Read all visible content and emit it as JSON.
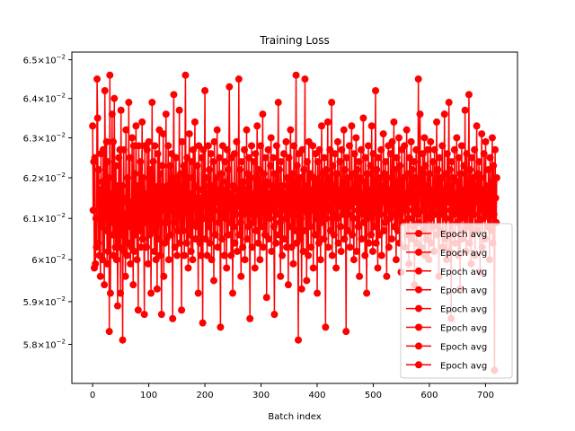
{
  "chart_data": {
    "type": "line",
    "title": "Training Loss",
    "xlabel": "Batch index",
    "ylabel": "",
    "xlim": [
      -37,
      757
    ],
    "ylim": [
      0.0571,
      0.0652
    ],
    "y_scale": "log",
    "x_ticks": [
      0,
      100,
      200,
      300,
      400,
      500,
      600,
      700
    ],
    "x_tick_labels": [
      "0",
      "100",
      "200",
      "300",
      "400",
      "500",
      "600",
      "700"
    ],
    "y_ticks": [
      0.058,
      0.059,
      0.06,
      0.061,
      0.062,
      0.063,
      0.064,
      0.065
    ],
    "y_tick_mantissas": [
      "5.8",
      "5.9",
      "6",
      "6.1",
      "6.2",
      "6.3",
      "6.4",
      "6.5"
    ],
    "y_tick_base": "10",
    "y_tick_exponent": "−2",
    "series_color": "#ff0000",
    "grid": false,
    "legend_position": "lower-right",
    "legend_entries": [
      "Epoch avg",
      "Epoch avg",
      "Epoch avg",
      "Epoch avg",
      "Epoch avg",
      "Epoch avg",
      "Epoch avg",
      "Epoch avg"
    ],
    "x_range": [
      0,
      720
    ],
    "values_y": [
      0.0633,
      0.0612,
      0.0624,
      0.0598,
      0.0625,
      0.0599,
      0.061,
      0.0603,
      0.0645,
      0.0635,
      0.0604,
      0.0622,
      0.0601,
      0.0617,
      0.0596,
      0.0626,
      0.0608,
      0.0619,
      0.06,
      0.0627,
      0.0612,
      0.0594,
      0.0642,
      0.0618,
      0.0607,
      0.0629,
      0.0599,
      0.0624,
      0.0602,
      0.062,
      0.0583,
      0.0646,
      0.0592,
      0.0616,
      0.0609,
      0.0636,
      0.0606,
      0.0629,
      0.0601,
      0.064,
      0.0611,
      0.0603,
      0.0623,
      0.06,
      0.0618,
      0.0589,
      0.0609,
      0.0625,
      0.0603,
      0.0627,
      0.0592,
      0.0637,
      0.0606,
      0.0618,
      0.0581,
      0.0614,
      0.0627,
      0.0602,
      0.0611,
      0.0596,
      0.0632,
      0.0615,
      0.0601,
      0.062,
      0.0604,
      0.0639,
      0.0608,
      0.0625,
      0.0599,
      0.0614,
      0.0603,
      0.063,
      0.0611,
      0.0594,
      0.0628,
      0.0602,
      0.0621,
      0.0606,
      0.0633,
      0.0612,
      0.06,
      0.0618,
      0.0588,
      0.0628,
      0.0615,
      0.0607,
      0.0624,
      0.0603,
      0.0613,
      0.0634,
      0.0605,
      0.062,
      0.0611,
      0.0587,
      0.0628,
      0.0609,
      0.0616,
      0.0603,
      0.0627,
      0.0611,
      0.0599,
      0.0629,
      0.0615,
      0.0606,
      0.0622,
      0.0592,
      0.0612,
      0.0639,
      0.0607,
      0.0624,
      0.0615,
      0.0602,
      0.0628,
      0.0611,
      0.06,
      0.0617,
      0.0593,
      0.0626,
      0.0605,
      0.0618,
      0.0632,
      0.0601,
      0.0621,
      0.0609,
      0.0587,
      0.0623,
      0.0612,
      0.0631,
      0.0596,
      0.0617,
      0.0604,
      0.0613,
      0.0636,
      0.0605,
      0.0618,
      0.0609,
      0.0628,
      0.06,
      0.0614,
      0.0623,
      0.0606,
      0.0619,
      0.0626,
      0.0612,
      0.0586,
      0.062,
      0.0641,
      0.0609,
      0.0603,
      0.0618,
      0.0625,
      0.0611,
      0.0601,
      0.062,
      0.0607,
      0.0616,
      0.0637,
      0.0604,
      0.0621,
      0.0612,
      0.0588,
      0.0629,
      0.0615,
      0.0607,
      0.0623,
      0.0601,
      0.0618,
      0.0646,
      0.0612,
      0.0604,
      0.0625,
      0.0611,
      0.0598,
      0.062,
      0.0631,
      0.0606,
      0.0616,
      0.0602,
      0.0624,
      0.0613,
      0.06,
      0.0627,
      0.0609,
      0.0618,
      0.0634,
      0.0605,
      0.0615,
      0.0608,
      0.0623,
      0.0612,
      0.0592,
      0.0628,
      0.0617,
      0.0604,
      0.0615,
      0.0601,
      0.0625,
      0.0613,
      0.0585,
      0.0627,
      0.061,
      0.0618,
      0.0642,
      0.0605,
      0.062,
      0.0614,
      0.0601,
      0.0616,
      0.0628,
      0.0608,
      0.0622,
      0.0604,
      0.0613,
      0.0626,
      0.06,
      0.0618,
      0.061,
      0.0624,
      0.0595,
      0.0629,
      0.0612,
      0.0606,
      0.062,
      0.0614,
      0.0632,
      0.0603,
      0.0617,
      0.0609,
      0.0625,
      0.0612,
      0.0584,
      0.0621,
      0.0615,
      0.0605,
      0.0628,
      0.0611,
      0.0617,
      0.0601,
      0.0624,
      0.061,
      0.0619,
      0.0598,
      0.0627,
      0.0613,
      0.0606,
      0.0622,
      0.0643,
      0.0609,
      0.0616,
      0.0601,
      0.0625,
      0.0612,
      0.0592,
      0.0618,
      0.0608,
      0.0626,
      0.0604,
      0.0615,
      0.0611,
      0.0629,
      0.0602,
      0.0617,
      0.0613,
      0.0645,
      0.0606,
      0.0622,
      0.0609,
      0.0596,
      0.0624,
      0.0614,
      0.0603,
      0.0619,
      0.0611,
      0.0627,
      0.06,
      0.0617,
      0.0612,
      0.0632,
      0.0605,
      0.0621,
      0.0608,
      0.0625,
      0.0614,
      0.0586,
      0.062,
      0.0611,
      0.0628,
      0.0603,
      0.0616,
      0.0609,
      0.0624,
      0.0612,
      0.0598,
      0.0626,
      0.0607,
      0.0619,
      0.0633,
      0.0611,
      0.0604,
      0.0622,
      0.0615,
      0.06,
      0.0628,
      0.0613,
      0.0608,
      0.0617,
      0.0636,
      0.0603,
      0.0621,
      0.0612,
      0.0606,
      0.0625,
      0.0614,
      0.0591,
      0.0619,
      0.0611,
      0.0627,
      0.0605,
      0.0616,
      0.061,
      0.0623,
      0.063,
      0.0602,
      0.0618,
      0.0612,
      0.0625,
      0.0608,
      0.0587,
      0.0621,
      0.0614,
      0.0604,
      0.0628,
      0.0611,
      0.0617,
      0.0639,
      0.0606,
      0.0622,
      0.0609,
      0.0596,
      0.0624,
      0.0613,
      0.0601,
      0.0618,
      0.0612,
      0.0626,
      0.0605,
      0.0616,
      0.061,
      0.0629,
      0.0603,
      0.062,
      0.0614,
      0.0594,
      0.0625,
      0.0608,
      0.0617,
      0.0632,
      0.0611,
      0.0603,
      0.0621,
      0.0615,
      0.0599,
      0.0628,
      0.0612,
      0.0607,
      0.0619,
      0.0646,
      0.0604,
      0.0623,
      0.0611,
      0.0581,
      0.0626,
      0.0614,
      0.0605,
      0.062,
      0.061,
      0.0593,
      0.0627,
      0.0616,
      0.0602,
      0.0622,
      0.0612,
      0.0645,
      0.0607,
      0.0618,
      0.0595,
      0.0624,
      0.0611,
      0.0601,
      0.0629,
      0.0614,
      0.0608,
      0.0621,
      0.0603,
      0.0617,
      0.0612,
      0.0628,
      0.0598,
      0.062,
      0.0613,
      0.0606,
      0.0626,
      0.061,
      0.0619,
      0.0592,
      0.0624,
      0.0611,
      0.0604,
      0.0627,
      0.0615,
      0.06,
      0.0618,
      0.0633,
      0.0609,
      0.0621,
      0.0612,
      0.0605,
      0.0625,
      0.0614,
      0.0584,
      0.0622,
      0.061,
      0.0617,
      0.0634,
      0.0603,
      0.062,
      0.0612,
      0.0627,
      0.0607,
      0.0615,
      0.0639,
      0.0601,
      0.0623,
      0.0611,
      0.0606,
      0.0618,
      0.0626,
      0.0614,
      0.0598,
      0.0621,
      0.061,
      0.0629,
      0.0604,
      0.0617,
      0.0613,
      0.0624,
      0.0608,
      0.0602,
      0.0627,
      0.0615,
      0.0611,
      0.0619,
      0.0632,
      0.0605,
      0.0622,
      0.0612,
      0.0583,
      0.0625,
      0.0614,
      0.0607,
      0.062,
      0.0611,
      0.0628,
      0.0603,
      0.0617,
      0.0613,
      0.0633,
      0.0606,
      0.0621,
      0.061,
      0.06,
      0.0626,
      0.0614,
      0.0618,
      0.063,
      0.0602,
      0.0622,
      0.0612,
      0.0608,
      0.0624,
      0.0596,
      0.062,
      0.0613,
      0.0627,
      0.0605,
      0.0616,
      0.0611,
      0.0635,
      0.0609,
      0.0619,
      0.0601,
      0.0625,
      0.0614,
      0.0592,
      0.0621,
      0.061,
      0.0628,
      0.0604,
      0.0617,
      0.0612,
      0.0623,
      0.0606,
      0.0633,
      0.0611,
      0.0602,
      0.0626,
      0.0615,
      0.0608,
      0.0619,
      0.0642,
      0.0604,
      0.0622,
      0.0612,
      0.0598,
      0.0625,
      0.0613,
      0.0606,
      0.062,
      0.0611,
      0.0627,
      0.0601,
      0.0618,
      0.0614,
      0.0631,
      0.0607,
      0.0621,
      0.0609,
      0.0624,
      0.0615,
      0.0596,
      0.062,
      0.0612,
      0.0628,
      0.0603,
      0.0617,
      0.061,
      0.0626,
      0.0613,
      0.0605,
      0.0629,
      0.0611,
      0.0618,
      0.0634,
      0.0608,
      0.0622,
      0.0614,
      0.06,
      0.0625,
      0.0612,
      0.0607,
      0.0619,
      0.063,
      0.0604,
      0.0623,
      0.0611,
      0.0597,
      0.0627,
      0.0615,
      0.0609,
      0.062,
      0.0613,
      0.0628,
      0.0603,
      0.0616,
      0.0612,
      0.0632,
      0.0606,
      0.0621,
      0.061,
      0.0599,
      0.0625,
      0.0614,
      0.0617,
      0.0629,
      0.0605,
      0.0622,
      0.0612,
      0.0608,
      0.0624,
      0.0594,
      0.062,
      0.0613,
      0.0627,
      0.0604,
      0.0618,
      0.0611,
      0.0645,
      0.0609,
      0.0619,
      0.0636,
      0.0616,
      0.0603,
      0.0622,
      0.0612,
      0.0626,
      0.0607,
      0.0615,
      0.063,
      0.0601,
      0.0623,
      0.0611,
      0.0605,
      0.0618,
      0.0627,
      0.0614,
      0.06,
      0.0621,
      0.061,
      0.0629,
      0.0604,
      0.0617,
      0.0612,
      0.0624,
      0.0608,
      0.0602,
      0.0627,
      0.0615,
      0.0611,
      0.0619,
      0.0634,
      0.0606,
      0.0622,
      0.0613,
      0.0596,
      0.0625,
      0.0614,
      0.0607,
      0.062,
      0.0611,
      0.0628,
      0.0603,
      0.0617,
      0.0612,
      0.0636,
      0.0605,
      0.0621,
      0.061,
      0.06,
      0.0626,
      0.0614,
      0.0618,
      0.0639,
      0.0602,
      0.0622,
      0.0612,
      0.0586,
      0.0624,
      0.0613,
      0.0606,
      0.062,
      0.0611,
      0.0627,
      0.0604,
      0.0616,
      0.0612,
      0.063,
      0.0609,
      0.0619,
      0.0601,
      0.0625,
      0.0614,
      0.0593,
      0.0621,
      0.061,
      0.0628,
      0.0605,
      0.0617,
      0.0612,
      0.0623,
      0.0607,
      0.0637,
      0.0611,
      0.0602,
      0.0626,
      0.0615,
      0.0608,
      0.0619,
      0.0641,
      0.0604,
      0.0622,
      0.0612,
      0.0599,
      0.0625,
      0.0613,
      0.0606,
      0.062,
      0.0611,
      0.0627,
      0.0601,
      0.0618,
      0.0614,
      0.0633,
      0.0607,
      0.0621,
      0.0609,
      0.0624,
      0.0615,
      0.0597,
      0.062,
      0.0612,
      0.0631,
      0.0603,
      0.0617,
      0.061,
      0.0626,
      0.0613,
      0.0605,
      0.0629,
      0.0611,
      0.0618,
      0.0612,
      0.0608,
      0.0622,
      0.0614,
      0.06,
      0.0625,
      0.0612,
      0.0607,
      0.0619,
      0.063,
      0.0604,
      0.0623,
      0.0611,
      0.0574,
      0.0627,
      0.0615,
      0.0609,
      0.062
    ]
  }
}
